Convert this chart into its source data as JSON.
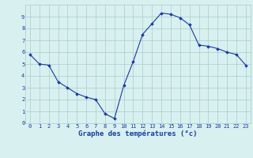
{
  "hours": [
    0,
    1,
    2,
    3,
    4,
    5,
    6,
    7,
    8,
    9,
    10,
    11,
    12,
    13,
    14,
    15,
    16,
    17,
    18,
    19,
    20,
    21,
    22,
    23
  ],
  "temperatures": [
    5.8,
    5.0,
    4.9,
    3.5,
    3.0,
    2.5,
    2.2,
    2.0,
    0.8,
    0.4,
    3.2,
    5.2,
    7.5,
    8.4,
    9.3,
    9.2,
    8.9,
    8.3,
    6.6,
    6.5,
    6.3,
    6.0,
    5.8,
    4.9
  ],
  "line_color": "#1a3a9e",
  "marker": "D",
  "marker_size": 1.8,
  "bg_color": "#d8f0f0",
  "grid_color": "#aacccc",
  "xlabel": "Graphe des températures (°c)",
  "xlabel_color": "#1a3a9e",
  "xlabel_fontsize": 6.5,
  "tick_color": "#1a3a9e",
  "tick_fontsize": 5.0,
  "ylim": [
    0,
    10
  ],
  "xlim_min": -0.5,
  "xlim_max": 23.5,
  "yticks": [
    0,
    1,
    2,
    3,
    4,
    5,
    6,
    7,
    8,
    9
  ],
  "xticks": [
    0,
    1,
    2,
    3,
    4,
    5,
    6,
    7,
    8,
    9,
    10,
    11,
    12,
    13,
    14,
    15,
    16,
    17,
    18,
    19,
    20,
    21,
    22,
    23
  ]
}
